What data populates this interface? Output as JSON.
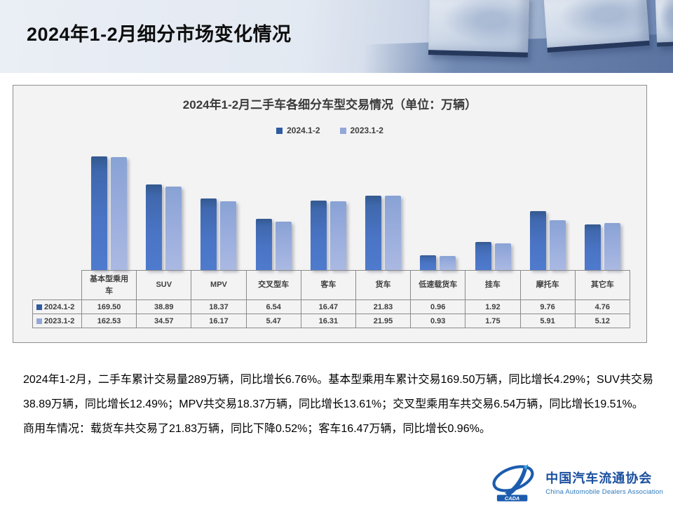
{
  "header": {
    "title": "2024年1-2月细分市场变化情况"
  },
  "chart": {
    "title": "2024年1-2月二手车各细分车型交易情况（单位：万辆）"
  },
  "chart_data": {
    "type": "bar",
    "title": "2024年1-2月二手车各细分车型交易情况（单位：万辆）",
    "unit": "万辆",
    "categories": [
      "基本型乘用车",
      "SUV",
      "MPV",
      "交叉型车",
      "客车",
      "货车",
      "低速载货车",
      "挂车",
      "摩托车",
      "其它车"
    ],
    "series": [
      {
        "name": "2024.1-2",
        "color": "#2f5b9f",
        "values": [
          169.5,
          38.89,
          18.37,
          6.54,
          16.47,
          21.83,
          0.96,
          1.92,
          9.76,
          4.76
        ]
      },
      {
        "name": "2023.1-2",
        "color": "#93a7d7",
        "values": [
          162.53,
          34.57,
          16.17,
          5.47,
          16.31,
          21.95,
          0.93,
          1.75,
          5.91,
          5.12
        ]
      }
    ],
    "scale": "log",
    "grid": false,
    "legend_position": "top",
    "data_table": true
  },
  "body_text": {
    "paragraphs": [
      "2024年1-2月，二手车累计交易量289万辆，同比增长6.76%。基本型乘用车累计交易169.50万辆，同比增长4.29%；SUV共交易38.89万辆，同比增长12.49%；MPV共交易18.37万辆，同比增长13.61%；交叉型乘用车共交易6.54万辆，同比增长19.51%。",
      "商用车情况：载货车共交易了21.83万辆，同比下降0.52%；客车16.47万辆，同比增长0.96%。"
    ]
  },
  "footer": {
    "logo_badge": "CADA",
    "logo_text_cn": "中国汽车流通协会",
    "logo_text_en": "China Automobile Dealers Association"
  },
  "colors": {
    "bar_2024": "#4472c4",
    "bar_2023": "#98acdd",
    "panel_bg": "#f3f3f4",
    "logo_blue": "#1c5cae"
  }
}
